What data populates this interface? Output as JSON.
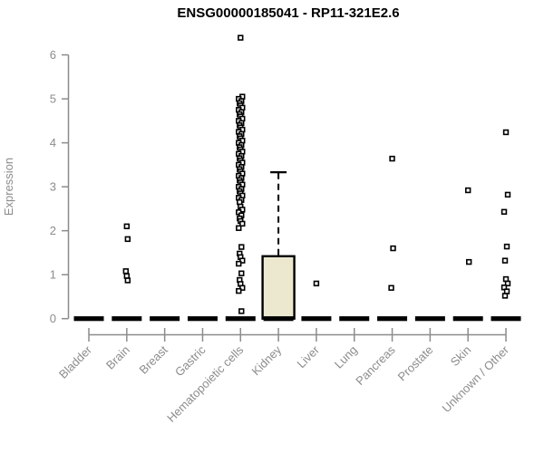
{
  "chart_data": {
    "type": "box",
    "title": "ENSG00000185041 - RP11-321E2.6",
    "ylabel": "Expression",
    "xlabel": "",
    "ylim": [
      0,
      6
    ],
    "yticks": [
      0,
      1,
      2,
      3,
      4,
      5,
      6
    ],
    "grid": false,
    "legend": "none",
    "colors": {
      "box_fill": "#ECE8D0",
      "box_border": "#000000",
      "median": "#000000",
      "point_border": "#000000",
      "point_fill": "#ffffff",
      "axis": "#8C8C8C",
      "text": "#8C8C8C",
      "title": "#000000"
    },
    "categories": [
      {
        "name": "Bladder",
        "median": 0,
        "box": null,
        "outliers": []
      },
      {
        "name": "Brain",
        "median": 0,
        "box": null,
        "outliers": [
          2.1,
          1.81,
          1.08,
          0.97,
          0.87
        ]
      },
      {
        "name": "Breast",
        "median": 0,
        "box": null,
        "outliers": []
      },
      {
        "name": "Gastric",
        "median": 0,
        "box": null,
        "outliers": []
      },
      {
        "name": "Hematopoietic cells",
        "median": 0,
        "box": null,
        "outliers": [
          6.39,
          5.05,
          5.0,
          4.95,
          4.9,
          4.85,
          4.8,
          4.75,
          4.7,
          4.65,
          4.6,
          4.55,
          4.5,
          4.45,
          4.4,
          4.35,
          4.3,
          4.25,
          4.2,
          4.15,
          4.1,
          4.05,
          4.0,
          3.95,
          3.9,
          3.85,
          3.8,
          3.75,
          3.7,
          3.65,
          3.6,
          3.55,
          3.5,
          3.45,
          3.4,
          3.35,
          3.3,
          3.25,
          3.2,
          3.15,
          3.1,
          3.05,
          3.0,
          2.95,
          2.9,
          2.85,
          2.8,
          2.75,
          2.7,
          2.65,
          2.55,
          2.48,
          2.42,
          2.35,
          2.28,
          2.22,
          2.16,
          2.06,
          1.63,
          1.48,
          1.4,
          1.32,
          1.25,
          1.03,
          0.88,
          0.79,
          0.7,
          0.63,
          0.17
        ]
      },
      {
        "name": "Kidney",
        "median": 0,
        "box": {
          "q1": 0,
          "q3": 1.42,
          "whisker_low": 0,
          "whisker_high": 3.33
        },
        "outliers": []
      },
      {
        "name": "Liver",
        "median": 0,
        "box": null,
        "outliers": [
          0.8
        ]
      },
      {
        "name": "Lung",
        "median": 0,
        "box": null,
        "outliers": []
      },
      {
        "name": "Pancreas",
        "median": 0,
        "box": null,
        "outliers": [
          3.64,
          1.6,
          0.7
        ]
      },
      {
        "name": "Prostate",
        "median": 0,
        "box": null,
        "outliers": []
      },
      {
        "name": "Skin",
        "median": 0,
        "box": null,
        "outliers": [
          2.92,
          1.29
        ]
      },
      {
        "name": "Unknown / Other",
        "median": 0,
        "box": null,
        "outliers": [
          4.24,
          2.82,
          2.43,
          1.64,
          1.32,
          0.9,
          0.8,
          0.71,
          0.62,
          0.52
        ]
      }
    ]
  }
}
